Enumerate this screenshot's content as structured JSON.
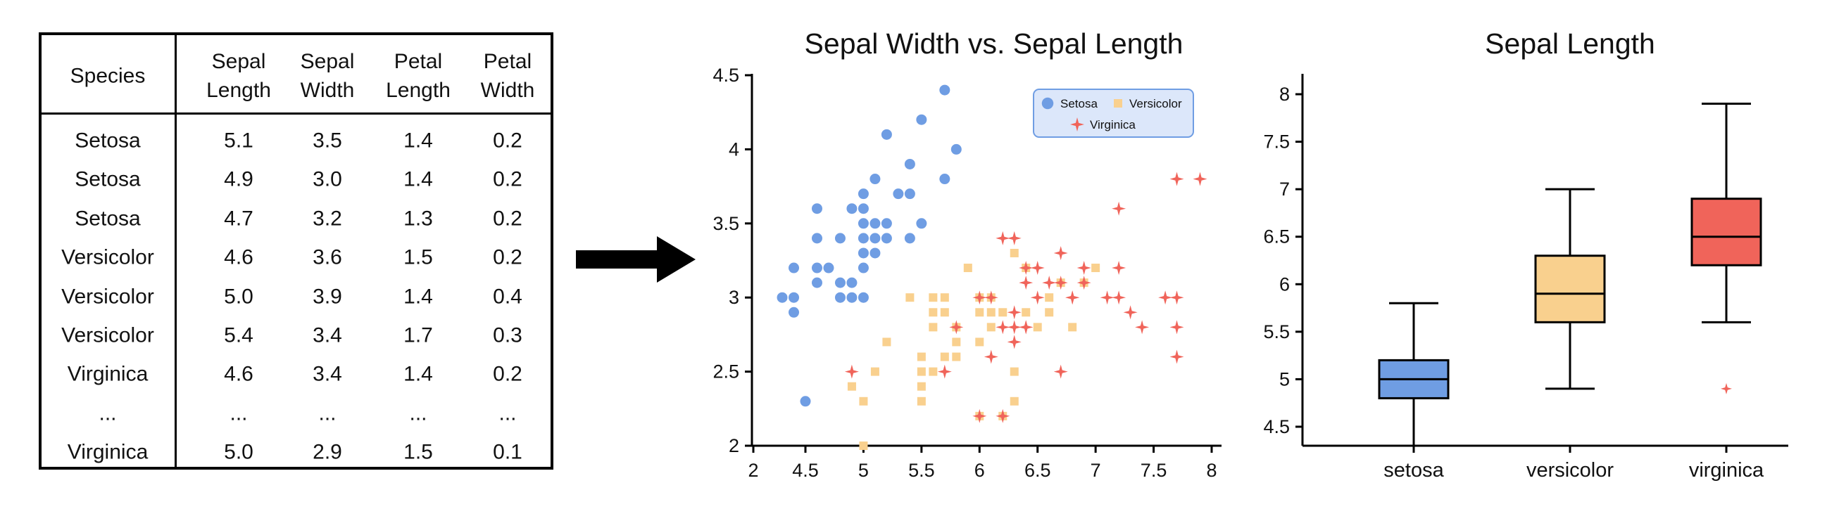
{
  "table": {
    "headers": [
      "Species",
      "Sepal\nLength",
      "Sepal\nWidth",
      "Petal\nLength",
      "Petal\nWidth"
    ],
    "rows": [
      [
        "Setosa",
        "5.1",
        "3.5",
        "1.4",
        "0.2"
      ],
      [
        "Setosa",
        "4.9",
        "3.0",
        "1.4",
        "0.2"
      ],
      [
        "Setosa",
        "4.7",
        "3.2",
        "1.3",
        "0.2"
      ],
      [
        "Versicolor",
        "4.6",
        "3.6",
        "1.5",
        "0.2"
      ],
      [
        "Versicolor",
        "5.0",
        "3.9",
        "1.4",
        "0.4"
      ],
      [
        "Versicolor",
        "5.4",
        "3.4",
        "1.7",
        "0.3"
      ],
      [
        "Virginica",
        "4.6",
        "3.4",
        "1.4",
        "0.2"
      ],
      [
        "...",
        "...",
        "...",
        "...",
        "..."
      ],
      [
        "Virginica",
        "5.0",
        "2.9",
        "1.5",
        "0.1"
      ]
    ]
  },
  "arrow_icon": "right-arrow-icon",
  "chart_data": [
    {
      "type": "scatter",
      "title": "Sepal Width vs. Sepal Length",
      "xlabel": "",
      "ylabel": "",
      "xlim": [
        2,
        8
      ],
      "ylim": [
        2,
        4.5
      ],
      "xticks": [
        "2",
        "4.5",
        "5",
        "5.5",
        "6",
        "6.5",
        "7",
        "7.5",
        "8"
      ],
      "xtick_values": [
        2,
        4.5,
        5,
        5.5,
        6,
        6.5,
        7,
        7.5,
        8
      ],
      "yticks": [
        "2",
        "2.5",
        "3",
        "3.5",
        "4",
        "4.5"
      ],
      "ytick_values": [
        2,
        2.5,
        3,
        3.5,
        4,
        4.5
      ],
      "grid": false,
      "legend": {
        "position": "top-right"
      },
      "series": [
        {
          "name": "Setosa",
          "marker": "circle",
          "color": "#6f9de3",
          "points": [
            [
              5.7,
              4.4
            ],
            [
              5.5,
              4.2
            ],
            [
              5.2,
              4.1
            ],
            [
              5.8,
              4.0
            ],
            [
              5.4,
              3.9
            ],
            [
              5.1,
              3.8
            ],
            [
              5.7,
              3.8
            ],
            [
              5.0,
              3.7
            ],
            [
              5.3,
              3.7
            ],
            [
              5.4,
              3.7
            ],
            [
              4.6,
              3.6
            ],
            [
              4.9,
              3.6
            ],
            [
              5.0,
              3.6
            ],
            [
              5.0,
              3.5
            ],
            [
              5.1,
              3.5
            ],
            [
              5.2,
              3.5
            ],
            [
              5.5,
              3.5
            ],
            [
              4.6,
              3.4
            ],
            [
              4.8,
              3.4
            ],
            [
              5.0,
              3.4
            ],
            [
              5.1,
              3.4
            ],
            [
              5.2,
              3.4
            ],
            [
              5.4,
              3.4
            ],
            [
              5.0,
              3.3
            ],
            [
              5.1,
              3.3
            ],
            [
              4.4,
              3.2
            ],
            [
              4.6,
              3.2
            ],
            [
              4.7,
              3.2
            ],
            [
              5.0,
              3.2
            ],
            [
              4.6,
              3.1
            ],
            [
              4.8,
              3.1
            ],
            [
              4.9,
              3.1
            ],
            [
              4.8,
              3.0
            ],
            [
              4.9,
              3.0
            ],
            [
              5.0,
              3.0
            ],
            [
              4.3,
              3.0
            ],
            [
              4.4,
              3.0
            ],
            [
              4.4,
              2.9
            ],
            [
              4.5,
              2.3
            ]
          ]
        },
        {
          "name": "Versicolor",
          "marker": "square",
          "color": "#f9d08e",
          "points": [
            [
              5.4,
              3.0
            ],
            [
              5.6,
              3.0
            ],
            [
              5.7,
              3.0
            ],
            [
              5.9,
              3.2
            ],
            [
              6.0,
              3.0
            ],
            [
              6.1,
              3.0
            ],
            [
              6.3,
              3.3
            ],
            [
              6.4,
              3.2
            ],
            [
              6.6,
              3.0
            ],
            [
              6.7,
              3.1
            ],
            [
              6.9,
              3.1
            ],
            [
              7.0,
              3.2
            ],
            [
              5.6,
              2.9
            ],
            [
              5.7,
              2.9
            ],
            [
              6.0,
              2.9
            ],
            [
              6.1,
              2.9
            ],
            [
              6.2,
              2.9
            ],
            [
              6.4,
              2.9
            ],
            [
              6.6,
              2.9
            ],
            [
              6.8,
              2.8
            ],
            [
              5.6,
              2.8
            ],
            [
              5.8,
              2.8
            ],
            [
              6.1,
              2.8
            ],
            [
              6.5,
              2.8
            ],
            [
              5.2,
              2.7
            ],
            [
              5.8,
              2.7
            ],
            [
              6.0,
              2.7
            ],
            [
              5.5,
              2.6
            ],
            [
              5.7,
              2.6
            ],
            [
              5.8,
              2.6
            ],
            [
              6.3,
              2.5
            ],
            [
              5.5,
              2.5
            ],
            [
              5.1,
              2.5
            ],
            [
              5.6,
              2.5
            ],
            [
              5.5,
              2.4
            ],
            [
              4.9,
              2.4
            ],
            [
              5.0,
              2.3
            ],
            [
              5.5,
              2.3
            ],
            [
              6.3,
              2.3
            ],
            [
              6.2,
              2.2
            ],
            [
              6.0,
              2.2
            ],
            [
              5.0,
              2.0
            ]
          ]
        },
        {
          "name": "Virginica",
          "marker": "star",
          "color": "#f0645a",
          "points": [
            [
              7.7,
              3.8
            ],
            [
              7.9,
              3.8
            ],
            [
              7.2,
              3.6
            ],
            [
              6.2,
              3.4
            ],
            [
              6.3,
              3.4
            ],
            [
              6.7,
              3.3
            ],
            [
              6.4,
              3.2
            ],
            [
              6.5,
              3.2
            ],
            [
              6.9,
              3.2
            ],
            [
              7.2,
              3.2
            ],
            [
              6.7,
              3.1
            ],
            [
              6.9,
              3.1
            ],
            [
              6.4,
              3.1
            ],
            [
              6.6,
              3.1
            ],
            [
              6.8,
              3.0
            ],
            [
              7.1,
              3.0
            ],
            [
              7.2,
              3.0
            ],
            [
              7.6,
              3.0
            ],
            [
              7.7,
              3.0
            ],
            [
              6.0,
              3.0
            ],
            [
              6.1,
              3.0
            ],
            [
              6.5,
              3.0
            ],
            [
              6.8,
              3.0
            ],
            [
              6.3,
              2.9
            ],
            [
              7.3,
              2.9
            ],
            [
              6.4,
              2.8
            ],
            [
              6.2,
              2.8
            ],
            [
              6.3,
              2.8
            ],
            [
              5.8,
              2.8
            ],
            [
              6.4,
              2.8
            ],
            [
              7.4,
              2.8
            ],
            [
              7.7,
              2.8
            ],
            [
              6.3,
              2.7
            ],
            [
              6.1,
              2.6
            ],
            [
              7.7,
              2.6
            ],
            [
              4.9,
              2.5
            ],
            [
              5.7,
              2.5
            ],
            [
              6.7,
              2.5
            ],
            [
              6.0,
              2.2
            ],
            [
              6.2,
              2.2
            ]
          ]
        }
      ]
    },
    {
      "type": "box",
      "title": "Sepal Length",
      "xlabel": "",
      "ylabel": "",
      "ylim": [
        4.3,
        8.2
      ],
      "yticks": [
        "4.5",
        "5",
        "5.5",
        "6",
        "6.5",
        "7",
        "7.5",
        "8"
      ],
      "ytick_values": [
        4.5,
        5,
        5.5,
        6,
        6.5,
        7,
        7.5,
        8
      ],
      "grid": false,
      "categories": [
        "setosa",
        "versicolor",
        "virginica"
      ],
      "boxes": [
        {
          "name": "setosa",
          "color": "#6f9de3",
          "min": 4.3,
          "q1": 4.8,
          "median": 5.0,
          "q3": 5.2,
          "max": 5.8,
          "outliers": []
        },
        {
          "name": "versicolor",
          "color": "#f9d08e",
          "min": 4.9,
          "q1": 5.6,
          "median": 5.9,
          "q3": 6.3,
          "max": 7.0,
          "outliers": []
        },
        {
          "name": "virginica",
          "color": "#f0645a",
          "min": 5.6,
          "q1": 6.2,
          "median": 6.5,
          "q3": 6.9,
          "max": 7.9,
          "outliers": [
            4.9
          ]
        }
      ]
    }
  ]
}
